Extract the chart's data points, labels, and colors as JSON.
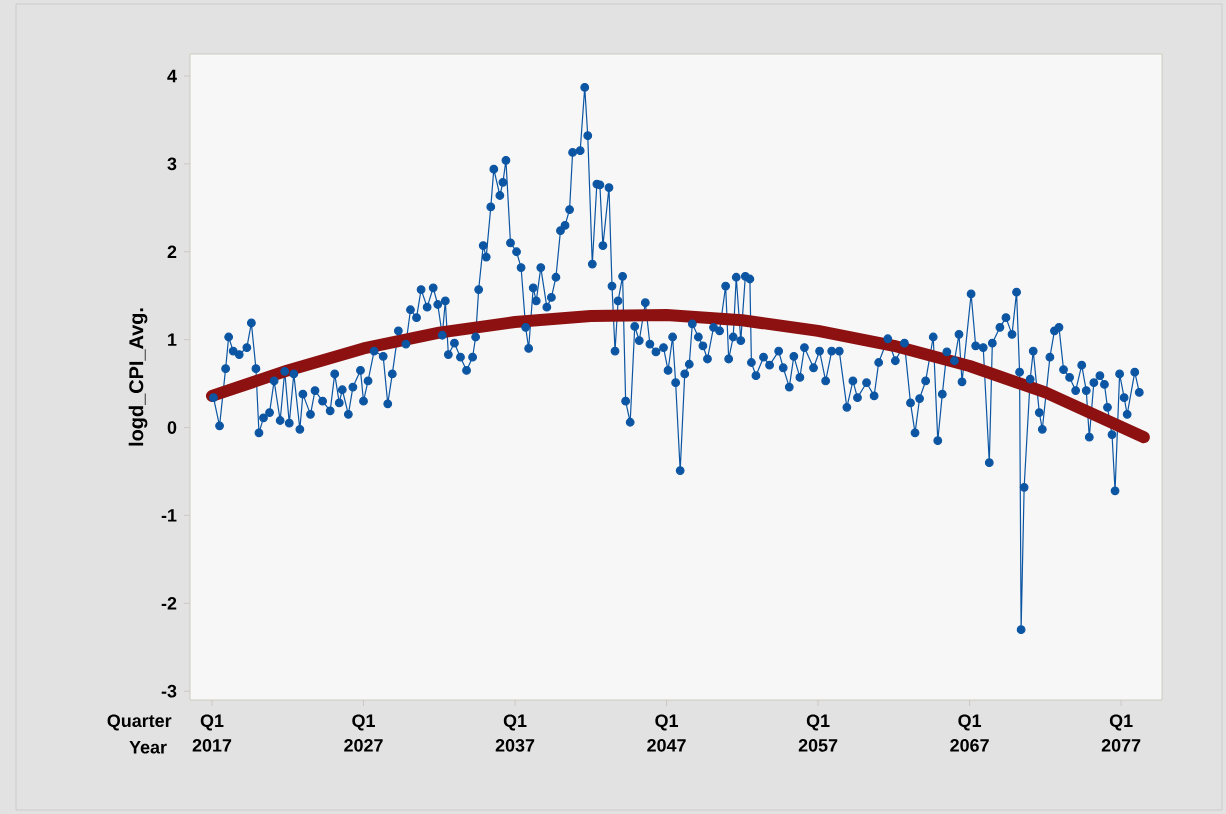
{
  "chart_data": {
    "type": "line",
    "ylabel": "logd_CPI_Avg.",
    "xlabel": "Year",
    "marker": "circle",
    "line_style": "solid",
    "xlim": [
      2015.55,
      2079.7
    ],
    "ylim": [
      -3.1,
      4.25
    ],
    "xticks": [
      2017,
      2027,
      2037,
      2047,
      2057,
      2067,
      2077
    ],
    "annotations": [
      "Quarter",
      "Q1",
      "Q1",
      "Q1",
      "Q1",
      "Q1",
      "Q1",
      "Q1"
    ],
    "yticks": [
      -3,
      -2,
      -1,
      0,
      1,
      2,
      3,
      4
    ],
    "series": [
      {
        "color": "#0b55a3",
        "x": [
          2017.1,
          2017.5,
          2017.9,
          2018.1,
          2018.4,
          2018.8,
          2019.3,
          2019.6,
          2019.9,
          2020.1,
          2020.4,
          2020.8,
          2021.1,
          2021.5,
          2021.8,
          2022.1,
          2022.4,
          2022.8,
          2023.0,
          2023.5,
          2023.8,
          2024.3,
          2024.8,
          2025.1,
          2025.4,
          2025.6,
          2026.0,
          2026.3,
          2026.8,
          2027.0,
          2027.3,
          2027.7,
          2028.3,
          2028.6,
          2028.9,
          2029.3,
          2029.8,
          2030.1,
          2030.5,
          2030.8,
          2031.2,
          2031.6,
          2031.9,
          2032.2,
          2032.4,
          2032.6,
          2033.0,
          2033.4,
          2033.8,
          2034.2,
          2034.4,
          2034.6,
          2034.9,
          2035.1,
          2035.4,
          2035.6,
          2036.0,
          2036.2,
          2036.4,
          2036.7,
          2037.1,
          2037.4,
          2037.7,
          2037.9,
          2038.2,
          2038.4,
          2038.7,
          2039.1,
          2039.4,
          2039.7,
          2040.0,
          2040.3,
          2040.6,
          2040.8,
          2041.3,
          2041.6,
          2041.8,
          2042.1,
          2042.4,
          2042.6,
          2042.8,
          2043.2,
          2043.4,
          2043.6,
          2043.8,
          2044.1,
          2044.3,
          2044.6,
          2044.9,
          2045.2,
          2045.6,
          2045.9,
          2046.3,
          2046.8,
          2047.1,
          2047.4,
          2047.6,
          2047.9,
          2048.2,
          2048.5,
          2048.7,
          2049.1,
          2049.4,
          2049.7,
          2050.1,
          2050.5,
          2050.9,
          2051.1,
          2051.4,
          2051.6,
          2051.9,
          2052.2,
          2052.5,
          2052.6,
          2052.9,
          2053.4,
          2053.8,
          2054.4,
          2054.7,
          2055.1,
          2055.4,
          2055.8,
          2056.1,
          2056.7,
          2057.1,
          2057.5,
          2057.9,
          2058.4,
          2058.9,
          2059.3,
          2059.6,
          2060.2,
          2060.7,
          2061.0,
          2061.6,
          2062.1,
          2062.7,
          2063.1,
          2063.4,
          2063.7,
          2064.1,
          2064.6,
          2064.9,
          2065.2,
          2065.5,
          2066.0,
          2066.3,
          2066.5,
          2067.1,
          2067.4,
          2067.9,
          2068.3,
          2068.5,
          2069.0,
          2069.4,
          2069.8,
          2070.1,
          2070.3,
          2070.4,
          2070.6,
          2071.0,
          2071.2,
          2071.6,
          2071.8,
          2072.3,
          2072.6,
          2072.9,
          2073.2,
          2073.6,
          2074.0,
          2074.4,
          2074.7,
          2074.9,
          2075.2,
          2075.6,
          2075.9,
          2076.1,
          2076.4,
          2076.6,
          2076.9,
          2077.2,
          2077.4,
          2077.9,
          2078.2
        ],
        "values": [
          0.34,
          0.02,
          0.67,
          1.03,
          0.87,
          0.83,
          0.91,
          1.19,
          0.67,
          -0.06,
          0.11,
          0.17,
          0.53,
          0.08,
          0.64,
          0.05,
          0.61,
          -0.02,
          0.38,
          0.15,
          0.42,
          0.3,
          0.19,
          0.61,
          0.28,
          0.43,
          0.15,
          0.46,
          0.65,
          0.3,
          0.53,
          0.87,
          0.81,
          0.27,
          0.61,
          1.1,
          0.95,
          1.34,
          1.25,
          1.57,
          1.37,
          1.59,
          1.4,
          1.05,
          1.44,
          0.83,
          0.96,
          0.8,
          0.65,
          0.8,
          1.03,
          1.57,
          2.07,
          1.94,
          2.51,
          2.94,
          2.64,
          2.79,
          3.04,
          2.1,
          2.0,
          1.82,
          1.14,
          0.9,
          1.59,
          1.44,
          1.82,
          1.37,
          1.48,
          1.71,
          2.24,
          2.3,
          2.48,
          3.13,
          3.15,
          3.87,
          3.32,
          1.86,
          2.77,
          2.76,
          2.07,
          2.73,
          1.61,
          0.87,
          1.44,
          1.72,
          0.3,
          0.06,
          1.15,
          0.99,
          1.42,
          0.95,
          0.86,
          0.91,
          0.65,
          1.03,
          0.51,
          -0.49,
          0.61,
          0.72,
          1.18,
          1.03,
          0.93,
          0.78,
          1.14,
          1.1,
          1.61,
          0.78,
          1.03,
          1.71,
          0.99,
          1.72,
          1.69,
          0.74,
          0.59,
          0.8,
          0.71,
          0.87,
          0.68,
          0.46,
          0.81,
          0.57,
          0.91,
          0.68,
          0.87,
          0.53,
          0.87,
          0.87,
          0.23,
          0.53,
          0.34,
          0.51,
          0.36,
          0.74,
          1.01,
          0.76,
          0.96,
          0.28,
          -0.06,
          0.33,
          0.53,
          1.03,
          -0.15,
          0.38,
          0.86,
          0.76,
          1.06,
          0.52,
          1.52,
          0.93,
          0.91,
          -0.4,
          0.96,
          1.14,
          1.25,
          1.06,
          1.54,
          0.63,
          -2.3,
          -0.68,
          0.55,
          0.87,
          0.17,
          -0.02,
          0.8,
          1.1,
          1.14,
          0.66,
          0.57,
          0.42,
          0.71,
          0.42,
          -0.11,
          0.51,
          0.59,
          0.49,
          0.23,
          -0.08,
          -0.72,
          0.61,
          0.34,
          0.15,
          0.63,
          0.4
        ]
      },
      {
        "type": "line",
        "marker": "none",
        "color": "#8e1111",
        "x": [
          2017,
          2022,
          2027,
          2032,
          2037,
          2042,
          2047,
          2052,
          2057,
          2062,
          2067,
          2072,
          2078.5
        ],
        "values": [
          0.36,
          0.65,
          0.9,
          1.08,
          1.2,
          1.27,
          1.28,
          1.22,
          1.1,
          0.93,
          0.7,
          0.4,
          -0.11
        ]
      }
    ]
  }
}
